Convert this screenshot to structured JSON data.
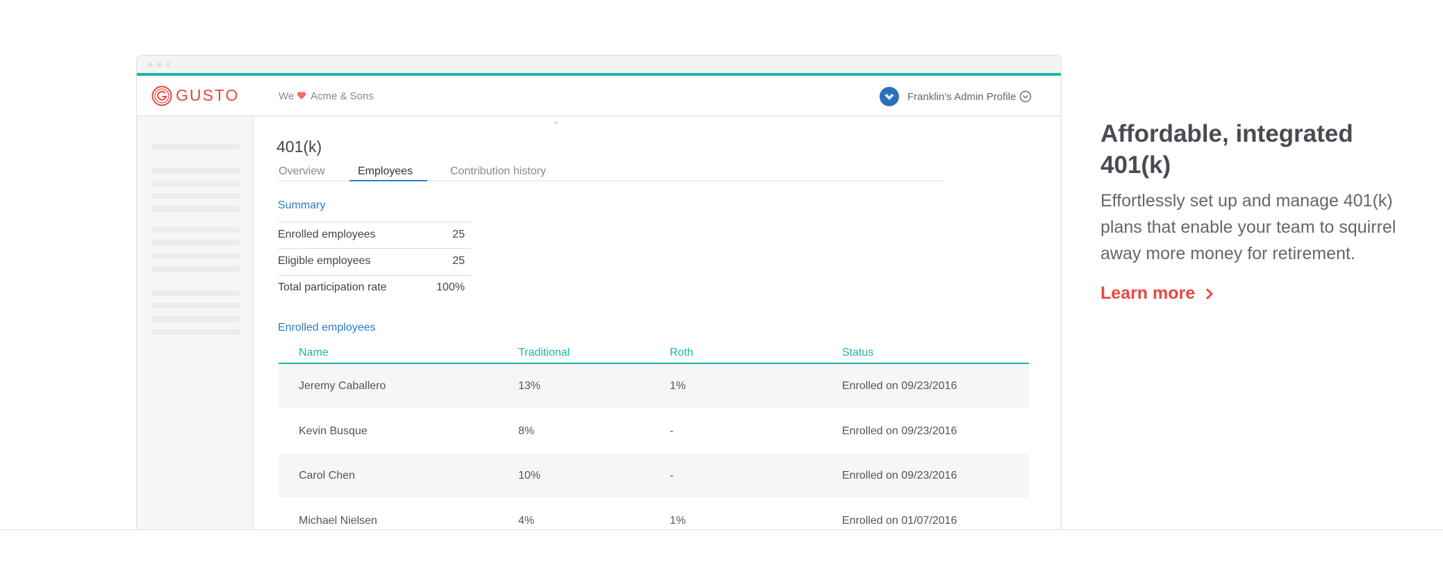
{
  "header": {
    "logo": "GUSTO",
    "we": "We",
    "company": "Acme & Sons",
    "profile": "Franklin’s Admin Profile"
  },
  "page": {
    "title": "401(k)",
    "tabs": [
      "Overview",
      "Employees",
      "Contribution history"
    ],
    "summary": {
      "heading": "Summary",
      "rows": [
        [
          "Enrolled employees",
          "25"
        ],
        [
          "Eligible employees",
          "25"
        ],
        [
          "Total participation rate",
          "100%"
        ]
      ]
    },
    "enrolled": {
      "heading": "Enrolled employees",
      "columns": [
        "Name",
        "Traditional",
        "Roth",
        "Status"
      ],
      "rows": [
        [
          "Jeremy Caballero",
          "13%",
          "1%",
          "Enrolled on 09/23/2016"
        ],
        [
          "Kevin Busque",
          "8%",
          "-",
          "Enrolled on 09/23/2016"
        ],
        [
          "Carol Chen",
          "10%",
          "-",
          "Enrolled on 09/23/2016"
        ],
        [
          "Michael Nielsen",
          "4%",
          "1%",
          "Enrolled on 01/07/2016"
        ]
      ]
    }
  },
  "marketing": {
    "heading": "Affordable, integrated 401(k)",
    "body": "Effortlessly set up and manage 401(k) plans that enable your team to squirrel away more money for retirement.",
    "link": "Learn more"
  }
}
